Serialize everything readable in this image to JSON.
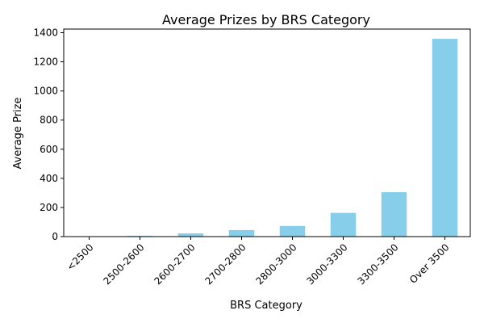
{
  "chart_data": {
    "type": "bar",
    "title": "Average Prizes by BRS Category",
    "xlabel": "BRS Category",
    "ylabel": "Average Prize",
    "categories": [
      "<2500",
      "2500-2600",
      "2600-2700",
      "2700-2800",
      "2800-3000",
      "3000-3300",
      "3300-3500",
      "Over 3500"
    ],
    "values": [
      2,
      5,
      22,
      45,
      73,
      163,
      305,
      1358
    ],
    "ylim": [
      0,
      1425
    ],
    "yticks": [
      0,
      200,
      400,
      600,
      800,
      1000,
      1200,
      1400
    ],
    "bar_color": "#87ceeb",
    "grid": false,
    "legend": "none"
  }
}
